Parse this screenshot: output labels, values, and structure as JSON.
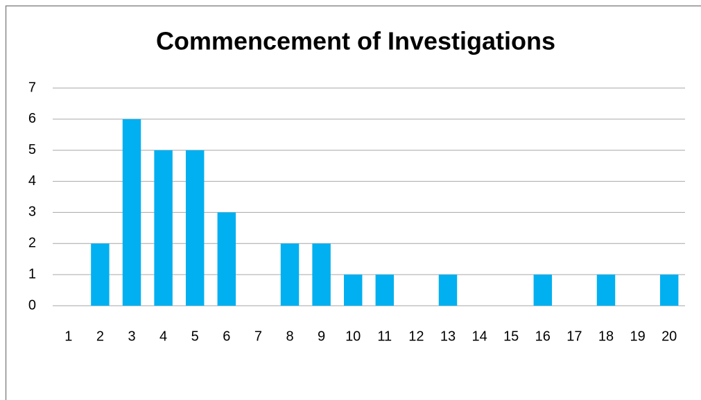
{
  "chart_data": {
    "type": "bar",
    "title": "Commencement of Investigations",
    "categories": [
      "1",
      "2",
      "3",
      "4",
      "5",
      "6",
      "7",
      "8",
      "9",
      "10",
      "11",
      "12",
      "13",
      "14",
      "15",
      "16",
      "17",
      "18",
      "19",
      "20"
    ],
    "values": [
      0,
      2,
      6,
      5,
      5,
      3,
      0,
      2,
      2,
      1,
      1,
      0,
      1,
      0,
      0,
      1,
      0,
      1,
      0,
      1
    ],
    "color": "#00b0f0",
    "ylim": [
      0,
      7
    ],
    "yticks": [
      0,
      1,
      2,
      3,
      4,
      5,
      6,
      7
    ],
    "grid": true
  }
}
